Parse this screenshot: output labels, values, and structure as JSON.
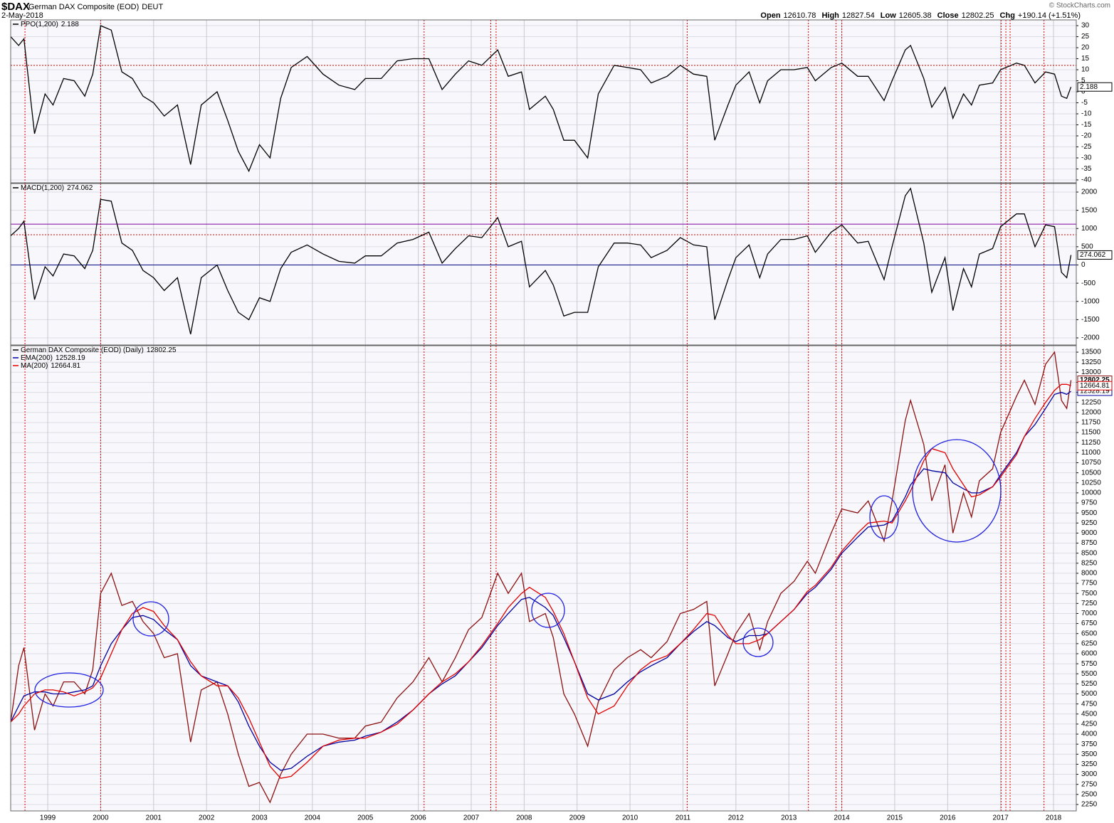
{
  "header": {
    "symbol": "$DAX",
    "name": "German DAX Composite (EOD)",
    "exchange": "DEUT",
    "date": "2-May-2018",
    "copyright": "© StockCharts.com",
    "quote": [
      {
        "label": "Open",
        "value": "12610.78"
      },
      {
        "label": "High",
        "value": "12827.54"
      },
      {
        "label": "Low",
        "value": "12605.38"
      },
      {
        "label": "Close",
        "value": "12802.25"
      },
      {
        "label": "Chg",
        "value": "+190.14 (+1.51%)"
      }
    ]
  },
  "chart_data": [
    {
      "type": "line",
      "grid": true,
      "xlim": [
        1998.3,
        2018.43
      ],
      "ylim": [
        -41.3,
        32.6
      ],
      "yticks": [
        -40,
        -35,
        -30,
        -25,
        -20,
        -15,
        -10,
        -5,
        0,
        5,
        10,
        15,
        20,
        25,
        30
      ],
      "hlines": [
        {
          "value": 12,
          "color": "#e00000",
          "style": "dotted"
        }
      ],
      "x": [
        1998.3,
        1998.45,
        1998.55,
        1998.75,
        1998.95,
        1999.1,
        1999.3,
        1999.5,
        1999.7,
        1999.85,
        2000.0,
        2000.2,
        2000.4,
        2000.6,
        2000.8,
        2001.0,
        2001.2,
        2001.45,
        2001.7,
        2001.9,
        2002.2,
        2002.4,
        2002.6,
        2002.8,
        2003.0,
        2003.2,
        2003.4,
        2003.6,
        2003.9,
        2004.2,
        2004.5,
        2004.8,
        2005.0,
        2005.3,
        2005.6,
        2005.9,
        2006.2,
        2006.45,
        2006.7,
        2006.95,
        2007.2,
        2007.5,
        2007.7,
        2007.95,
        2008.1,
        2008.4,
        2008.55,
        2008.75,
        2008.95,
        2009.2,
        2009.4,
        2009.7,
        2009.95,
        2010.2,
        2010.4,
        2010.7,
        2010.95,
        2011.2,
        2011.45,
        2011.6,
        2011.85,
        2012.0,
        2012.25,
        2012.45,
        2012.6,
        2012.85,
        2013.1,
        2013.35,
        2013.5,
        2013.8,
        2014.0,
        2014.3,
        2014.5,
        2014.8,
        2014.95,
        2015.2,
        2015.3,
        2015.55,
        2015.7,
        2015.95,
        2016.1,
        2016.3,
        2016.45,
        2016.6,
        2016.85,
        2017.0,
        2017.3,
        2017.45,
        2017.65,
        2017.85,
        2018.02,
        2018.15,
        2018.25,
        2018.33
      ],
      "series": [
        {
          "name": "PPO(1,200)",
          "last_label": "2.188",
          "color": "#000000",
          "values": [
            25,
            21,
            24,
            -19,
            -1,
            -6,
            6,
            5,
            -2,
            8,
            30,
            28,
            9,
            6,
            -2,
            -5,
            -11,
            -6,
            -33,
            -6,
            0,
            -13,
            -27,
            -36,
            -24,
            -30,
            -3,
            11,
            16,
            8,
            3,
            1,
            6,
            6,
            14,
            15,
            15,
            1,
            8,
            14,
            12,
            19,
            7,
            9,
            -8,
            -2,
            -8,
            -22,
            -22,
            -30,
            -1,
            12,
            11,
            10,
            4,
            7,
            12,
            8,
            7,
            -22,
            -6,
            3,
            9,
            -5,
            5,
            10,
            10,
            11,
            5,
            11,
            13,
            7,
            7,
            -4,
            5,
            19,
            21,
            6,
            -7,
            2,
            -12,
            -1,
            -6,
            3,
            4,
            10,
            13,
            12,
            4,
            9,
            8,
            -2,
            -3,
            2.188
          ]
        }
      ]
    },
    {
      "type": "line",
      "grid": true,
      "xlim": [
        1998.3,
        2018.43
      ],
      "ylim": [
        -2195,
        2234
      ],
      "yticks": [
        -2000,
        -1500,
        -1000,
        -500,
        0,
        500,
        1000,
        1500,
        2000
      ],
      "hlines": [
        {
          "value": 1120,
          "color": "#8000a0",
          "style": "solid"
        },
        {
          "value": 830,
          "color": "#e00000",
          "style": "dotted"
        },
        {
          "value": 0,
          "color": "#000080",
          "style": "solid"
        }
      ],
      "x": [
        1998.3,
        1998.45,
        1998.55,
        1998.75,
        1998.95,
        1999.1,
        1999.3,
        1999.5,
        1999.7,
        1999.85,
        2000.0,
        2000.2,
        2000.4,
        2000.6,
        2000.8,
        2001.0,
        2001.2,
        2001.45,
        2001.7,
        2001.9,
        2002.2,
        2002.4,
        2002.6,
        2002.8,
        2003.0,
        2003.2,
        2003.4,
        2003.6,
        2003.9,
        2004.2,
        2004.5,
        2004.8,
        2005.0,
        2005.3,
        2005.6,
        2005.9,
        2006.2,
        2006.45,
        2006.7,
        2006.95,
        2007.2,
        2007.5,
        2007.7,
        2007.95,
        2008.1,
        2008.4,
        2008.55,
        2008.75,
        2008.95,
        2009.2,
        2009.4,
        2009.7,
        2009.95,
        2010.2,
        2010.4,
        2010.7,
        2010.95,
        2011.2,
        2011.45,
        2011.6,
        2011.85,
        2012.0,
        2012.25,
        2012.45,
        2012.6,
        2012.85,
        2013.1,
        2013.35,
        2013.5,
        2013.8,
        2014.0,
        2014.3,
        2014.5,
        2014.8,
        2014.95,
        2015.2,
        2015.3,
        2015.55,
        2015.7,
        2015.95,
        2016.1,
        2016.3,
        2016.45,
        2016.6,
        2016.85,
        2017.0,
        2017.3,
        2017.45,
        2017.65,
        2017.85,
        2018.02,
        2018.15,
        2018.25,
        2018.33
      ],
      "series": [
        {
          "name": "MACD(1,200)",
          "last_label": "274.062",
          "color": "#000000",
          "values": [
            800,
            1000,
            1200,
            -950,
            -50,
            -300,
            300,
            250,
            -100,
            400,
            1800,
            1750,
            600,
            400,
            -150,
            -350,
            -700,
            -350,
            -1900,
            -350,
            0,
            -700,
            -1300,
            -1500,
            -900,
            -1000,
            -100,
            350,
            550,
            300,
            100,
            50,
            250,
            250,
            600,
            700,
            900,
            50,
            450,
            800,
            750,
            1300,
            500,
            650,
            -600,
            -150,
            -550,
            -1400,
            -1300,
            -1300,
            -50,
            600,
            600,
            550,
            200,
            400,
            750,
            550,
            500,
            -1500,
            -400,
            200,
            550,
            -350,
            300,
            700,
            700,
            800,
            350,
            900,
            1100,
            600,
            650,
            -400,
            500,
            1900,
            2100,
            600,
            -750,
            200,
            -1250,
            -100,
            -600,
            300,
            450,
            1050,
            1400,
            1400,
            500,
            1100,
            1050,
            -200,
            -350,
            274.062
          ]
        }
      ]
    },
    {
      "type": "line",
      "grid": true,
      "xlim": [
        1998.3,
        2018.43
      ],
      "ylim": [
        2090,
        13660
      ],
      "xticks": [
        1999,
        2000,
        2001,
        2002,
        2003,
        2004,
        2005,
        2006,
        2007,
        2008,
        2009,
        2010,
        2011,
        2012,
        2013,
        2014,
        2015,
        2016,
        2017,
        2018
      ],
      "yticks": [
        2250,
        2500,
        2750,
        3000,
        3250,
        3500,
        3750,
        4000,
        4250,
        4500,
        4750,
        5000,
        5250,
        5500,
        5750,
        6000,
        6250,
        6500,
        6750,
        7000,
        7250,
        7500,
        7750,
        8000,
        8250,
        8500,
        8750,
        9000,
        9250,
        9500,
        9750,
        10000,
        10250,
        10500,
        10750,
        11000,
        11250,
        11500,
        11750,
        12000,
        12250,
        12500,
        12750,
        13000,
        13250,
        13500
      ],
      "event_lines": [
        1998.57,
        2000.0,
        2006.11,
        2007.37,
        2007.47,
        2011.08,
        2013.37,
        2013.89,
        2014.0,
        2017.01,
        2017.1,
        2017.18,
        2017.82
      ],
      "event_color": "#e00000",
      "x": [
        1998.3,
        1998.45,
        1998.55,
        1998.75,
        1998.95,
        1999.1,
        1999.3,
        1999.5,
        1999.7,
        1999.85,
        2000.0,
        2000.2,
        2000.4,
        2000.6,
        2000.8,
        2001.0,
        2001.2,
        2001.45,
        2001.7,
        2001.9,
        2002.2,
        2002.4,
        2002.6,
        2002.8,
        2003.0,
        2003.2,
        2003.4,
        2003.6,
        2003.9,
        2004.2,
        2004.5,
        2004.8,
        2005.0,
        2005.3,
        2005.6,
        2005.9,
        2006.2,
        2006.45,
        2006.7,
        2006.95,
        2007.2,
        2007.5,
        2007.7,
        2007.95,
        2008.1,
        2008.4,
        2008.55,
        2008.75,
        2008.95,
        2009.2,
        2009.4,
        2009.7,
        2009.95,
        2010.2,
        2010.4,
        2010.7,
        2010.95,
        2011.2,
        2011.45,
        2011.6,
        2011.85,
        2012.0,
        2012.25,
        2012.45,
        2012.6,
        2012.85,
        2013.1,
        2013.35,
        2013.5,
        2013.8,
        2014.0,
        2014.3,
        2014.5,
        2014.8,
        2014.95,
        2015.2,
        2015.3,
        2015.55,
        2015.7,
        2015.95,
        2016.1,
        2016.3,
        2016.45,
        2016.6,
        2016.85,
        2017.0,
        2017.3,
        2017.45,
        2017.65,
        2017.85,
        2018.02,
        2018.15,
        2018.25,
        2018.33
      ],
      "series": [
        {
          "name": "German DAX Composite (EOD) (Daily)",
          "last_label": "12802.25",
          "color": "#8b1010",
          "values": [
            4300,
            5700,
            6150,
            4100,
            5000,
            4700,
            5300,
            5300,
            5000,
            5600,
            7500,
            8000,
            7200,
            7300,
            6800,
            6500,
            5900,
            6000,
            3800,
            5100,
            5300,
            4500,
            3500,
            2700,
            2800,
            2300,
            3000,
            3500,
            4000,
            4000,
            3900,
            3900,
            4200,
            4300,
            4900,
            5300,
            5900,
            5300,
            5900,
            6600,
            6900,
            8000,
            7500,
            8000,
            6800,
            7000,
            6400,
            5000,
            4500,
            3700,
            4800,
            5600,
            5900,
            6100,
            5900,
            6300,
            7000,
            7100,
            7300,
            5200,
            6000,
            6500,
            7000,
            6100,
            6800,
            7500,
            7800,
            8300,
            8000,
            9000,
            9600,
            9500,
            9800,
            8800,
            9800,
            11800,
            12300,
            11200,
            9800,
            10700,
            9000,
            10000,
            9400,
            10300,
            10600,
            11500,
            12400,
            12800,
            12200,
            13200,
            13500,
            12300,
            12100,
            12802.25
          ]
        },
        {
          "name": "EMA(200)",
          "last_label": "12528.19",
          "color": "#0000a0",
          "values": [
            4300,
            4700,
            4950,
            5050,
            5050,
            5000,
            5000,
            5050,
            5100,
            5200,
            5700,
            6250,
            6600,
            6900,
            6950,
            6850,
            6600,
            6350,
            5700,
            5450,
            5300,
            5200,
            4800,
            4200,
            3700,
            3300,
            3100,
            3150,
            3450,
            3700,
            3800,
            3850,
            3950,
            4050,
            4300,
            4600,
            5000,
            5250,
            5450,
            5800,
            6150,
            6700,
            7000,
            7350,
            7400,
            7150,
            6950,
            6400,
            5800,
            5000,
            4850,
            5000,
            5300,
            5550,
            5700,
            5900,
            6250,
            6550,
            6800,
            6700,
            6400,
            6300,
            6450,
            6450,
            6500,
            6800,
            7100,
            7500,
            7650,
            8100,
            8500,
            8900,
            9150,
            9200,
            9300,
            9900,
            10200,
            10600,
            10550,
            10500,
            10250,
            10100,
            10000,
            10000,
            10150,
            10450,
            11000,
            11400,
            11700,
            12100,
            12450,
            12500,
            12450,
            12528.19
          ]
        },
        {
          "name": "MA(200)",
          "last_label": "12664.81",
          "color": "#e00000",
          "values": [
            4300,
            4500,
            4700,
            5000,
            5100,
            5100,
            5050,
            4950,
            5050,
            5150,
            5400,
            6000,
            6600,
            7000,
            7150,
            7050,
            6700,
            6350,
            5800,
            5450,
            5200,
            5200,
            4900,
            4400,
            3800,
            3200,
            2900,
            2950,
            3300,
            3700,
            3850,
            3900,
            3900,
            4050,
            4250,
            4600,
            5000,
            5300,
            5500,
            5800,
            6200,
            6750,
            7150,
            7500,
            7650,
            7400,
            7050,
            6500,
            5800,
            4900,
            4500,
            4700,
            5200,
            5600,
            5800,
            5950,
            6250,
            6600,
            7000,
            6950,
            6450,
            6250,
            6250,
            6350,
            6500,
            6800,
            7100,
            7550,
            7700,
            8150,
            8550,
            9000,
            9250,
            9300,
            9250,
            9800,
            10050,
            10800,
            11100,
            11000,
            10600,
            10200,
            9900,
            9950,
            10150,
            10400,
            10950,
            11400,
            11850,
            12250,
            12550,
            12700,
            12700,
            12664.81
          ]
        }
      ]
    }
  ]
}
